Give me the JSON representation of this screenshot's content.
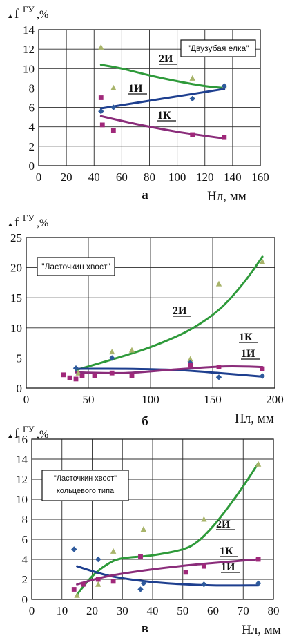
{
  "chart_data": [
    {
      "type": "scatter",
      "panel_letter": "а",
      "ylabel_main": "f",
      "ylabel_sup": "ГУ",
      "ylabel_unit": ",%",
      "xlabel": "Нл, мм",
      "xlim": [
        0,
        160
      ],
      "ylim": [
        0,
        14
      ],
      "x_ticks": [
        0,
        20,
        40,
        60,
        80,
        100,
        120,
        140,
        160
      ],
      "y_ticks": [
        0,
        2,
        4,
        6,
        8,
        10,
        12,
        14
      ],
      "grid": true,
      "title_box": "\"Двузубая елка\"",
      "annotations": [
        "2И",
        "1И",
        "1К"
      ],
      "points": [
        {
          "name": "2И",
          "color": "#a8b46a",
          "marker": "triangle",
          "x": [
            45,
            54,
            111,
            134
          ],
          "y": [
            12.2,
            8.0,
            9.0,
            8.2
          ]
        },
        {
          "name": "1И",
          "color": "#2e5a9c",
          "marker": "diamond",
          "x": [
            45,
            54,
            111,
            134
          ],
          "y": [
            5.6,
            6.0,
            6.9,
            8.2
          ]
        },
        {
          "name": "1К",
          "color": "#a0287a",
          "marker": "square",
          "x": [
            45,
            46,
            54,
            111,
            134
          ],
          "y": [
            7.0,
            4.2,
            3.6,
            3.2,
            2.9
          ]
        }
      ],
      "fits": [
        {
          "name": "2И",
          "color": "#2e9a3a",
          "x": [
            45,
            60,
            80,
            100,
            120,
            134
          ],
          "y": [
            10.4,
            10.0,
            9.3,
            8.7,
            8.2,
            8.0
          ]
        },
        {
          "name": "1И",
          "color": "#1e3f8f",
          "x": [
            45,
            134
          ],
          "y": [
            5.9,
            7.9
          ]
        },
        {
          "name": "1К",
          "color": "#8a2c7a",
          "x": [
            45,
            70,
            100,
            134
          ],
          "y": [
            5.1,
            4.3,
            3.5,
            2.8
          ]
        }
      ]
    },
    {
      "type": "scatter",
      "panel_letter": "б",
      "ylabel_main": "f",
      "ylabel_sup": "ГУ",
      "ylabel_unit": ",%",
      "xlabel": "Нл, мм",
      "xlim": [
        0,
        200
      ],
      "ylim": [
        0,
        25
      ],
      "x_ticks": [
        0,
        50,
        100,
        150,
        200
      ],
      "y_ticks": [
        0,
        5,
        10,
        15,
        20,
        25
      ],
      "grid": true,
      "title_box": "\"Ласточкин хвост\"",
      "annotations": [
        "2И",
        "1К",
        "1И"
      ],
      "points": [
        {
          "name": "2И",
          "color": "#a8b46a",
          "marker": "triangle",
          "x": [
            42,
            69,
            85,
            132,
            155,
            190
          ],
          "y": [
            2.5,
            6.0,
            6.3,
            4.8,
            17.3,
            21.0
          ]
        },
        {
          "name": "1И",
          "color": "#2e5a9c",
          "marker": "diamond",
          "x": [
            40,
            69,
            132,
            155,
            190
          ],
          "y": [
            3.3,
            5.0,
            4.2,
            1.8,
            2.0
          ]
        },
        {
          "name": "1К",
          "color": "#a0287a",
          "marker": "square",
          "x": [
            30,
            35,
            40,
            45,
            55,
            69,
            85,
            132,
            155,
            190
          ],
          "y": [
            2.2,
            1.7,
            1.5,
            2.0,
            2.1,
            2.5,
            2.1,
            3.8,
            3.5,
            3.2
          ]
        }
      ],
      "fits": [
        {
          "name": "2И",
          "color": "#2e9a3a",
          "x": [
            40,
            70,
            100,
            130,
            155,
            175,
            190
          ],
          "y": [
            3.0,
            4.8,
            6.8,
            9.5,
            13.0,
            17.5,
            21.8
          ]
        },
        {
          "name": "1И",
          "color": "#1e3f8f",
          "x": [
            40,
            80,
            120,
            155,
            190
          ],
          "y": [
            3.2,
            3.2,
            3.0,
            2.5,
            1.9
          ]
        },
        {
          "name": "1К",
          "color": "#8a2c7a",
          "x": [
            40,
            80,
            120,
            160,
            190
          ],
          "y": [
            2.6,
            2.5,
            3.1,
            3.6,
            3.5
          ]
        }
      ]
    },
    {
      "type": "scatter",
      "panel_letter": "в",
      "ylabel_main": "f",
      "ylabel_sup": "ГУ",
      "ylabel_unit": ",%",
      "xlabel": "Нл, мм",
      "xlim": [
        0,
        80
      ],
      "ylim": [
        0,
        16
      ],
      "x_ticks": [
        0,
        10,
        20,
        30,
        40,
        50,
        60,
        70,
        80
      ],
      "y_ticks": [
        0,
        2,
        4,
        6,
        8,
        10,
        12,
        14,
        16
      ],
      "grid": true,
      "title_box": "\"Ласточкин хвост\"\nкольцевого типа",
      "annotations": [
        "2И",
        "1К",
        "1И"
      ],
      "points": [
        {
          "name": "2И",
          "color": "#a8b46a",
          "marker": "triangle",
          "x": [
            15,
            22,
            27,
            37,
            57,
            75
          ],
          "y": [
            0.4,
            1.5,
            4.8,
            7.0,
            8.0,
            13.5
          ]
        },
        {
          "name": "1И",
          "color": "#2e5a9c",
          "marker": "diamond",
          "x": [
            14,
            22,
            36,
            37,
            57,
            75
          ],
          "y": [
            5.0,
            4.0,
            1.0,
            1.6,
            1.5,
            1.6
          ]
        },
        {
          "name": "1К",
          "color": "#a0287a",
          "marker": "square",
          "x": [
            14,
            17,
            22,
            27,
            36,
            51,
            57,
            75
          ],
          "y": [
            1.0,
            1.5,
            2.0,
            1.8,
            4.3,
            2.7,
            3.3,
            4.0
          ]
        }
      ],
      "fits": [
        {
          "name": "2И",
          "color": "#2e9a3a",
          "x": [
            15,
            20,
            25,
            30,
            40,
            50,
            55,
            60,
            65,
            70,
            75
          ],
          "y": [
            0.5,
            2.3,
            3.5,
            4.1,
            4.4,
            5.0,
            5.8,
            7.3,
            9.2,
            11.3,
            13.6
          ]
        },
        {
          "name": "1И",
          "color": "#1e3f8f",
          "x": [
            15,
            25,
            35,
            45,
            60,
            75
          ],
          "y": [
            3.3,
            2.4,
            1.9,
            1.6,
            1.4,
            1.4
          ]
        },
        {
          "name": "1К",
          "color": "#8a2c7a",
          "x": [
            15,
            25,
            40,
            55,
            75
          ],
          "y": [
            1.5,
            2.3,
            3.0,
            3.5,
            4.0
          ]
        }
      ]
    }
  ]
}
